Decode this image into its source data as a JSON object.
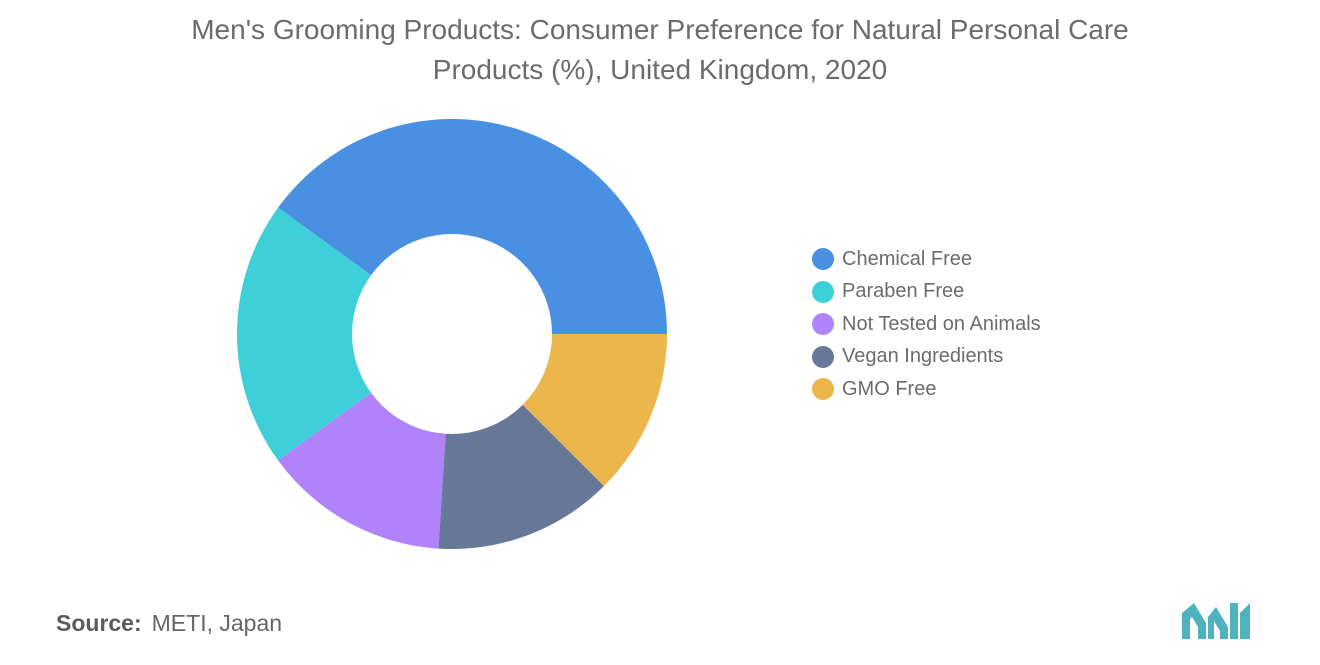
{
  "chart_data": {
    "type": "pie",
    "donut": true,
    "title_lines": [
      "Men's Grooming Products: Consumer Preference for Natural Personal Care",
      "Products (%), United Kingdom, 2020"
    ],
    "categories": [
      "Chemical Free",
      "Paraben Free",
      "Not Tested on Animals",
      "Vegan Ingredients",
      "GMO Free"
    ],
    "values": [
      40,
      20,
      14,
      13.5,
      12.5
    ],
    "colors": [
      "#4a90e2",
      "#3ecfd9",
      "#b083fa",
      "#677899",
      "#ebb64b"
    ],
    "legend_placement": "right"
  },
  "source": {
    "label": "Source:",
    "text": "METI, Japan"
  },
  "logo": {
    "icon": "mordor-logo-icon",
    "color": "#4fb3bf"
  }
}
